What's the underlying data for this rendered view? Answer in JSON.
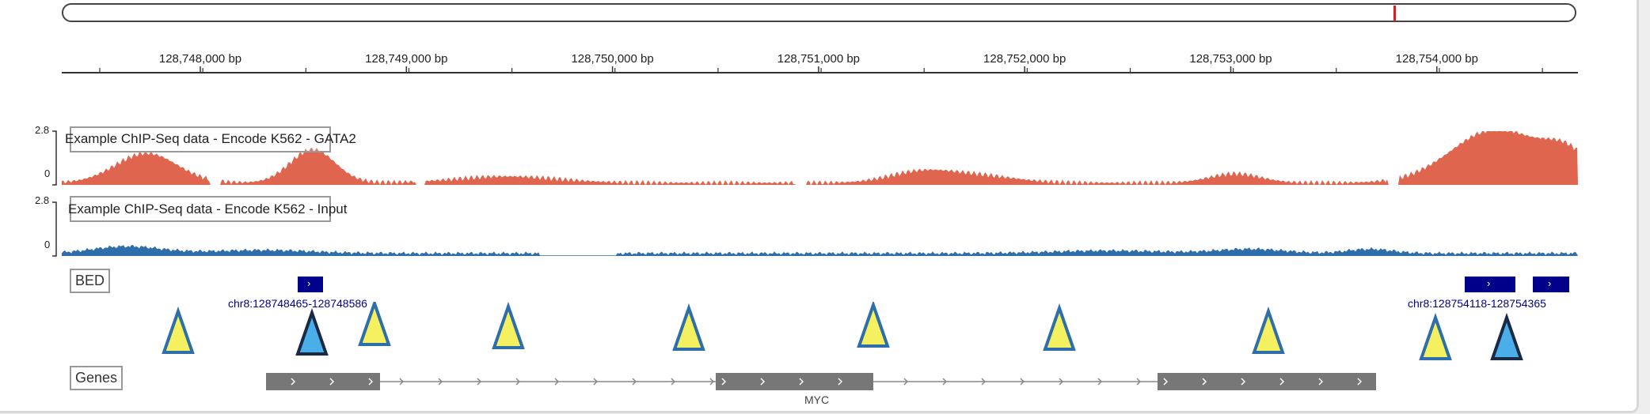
{
  "ideogram": {
    "marker_fraction": 0.88,
    "marker_color": "#d62020"
  },
  "ruler": {
    "ticks": [
      "128,748,000 bp",
      "128,749,000 bp",
      "128,750,000 bp",
      "128,751,000 bp",
      "128,752,000 bp",
      "128,753,000 bp",
      "128,754,000 bp"
    ]
  },
  "tracks": [
    {
      "name": "Example ChIP-Seq data - Encode K562 - GATA2",
      "max_label": "2.8",
      "min_label": "0",
      "color": "#e0654f"
    },
    {
      "name": "Example ChIP-Seq data - Encode K562 - Input",
      "max_label": "2.8",
      "min_label": "0",
      "color": "#2e6eaa"
    }
  ],
  "bed": {
    "label": "BED",
    "color": "#00008b",
    "features": [
      {
        "label": "chr8:128748465-128748586"
      },
      {
        "label": "chr8:128754118-128754365"
      }
    ]
  },
  "markers": {
    "fill_default": "#f5f060",
    "fill_selected": "#4aaee8",
    "stroke_default": "#2e6eaa",
    "stroke_selected": "#1a2a44"
  },
  "genes": {
    "label": "Genes",
    "gene_name": "MYC",
    "color": "#777777"
  }
}
